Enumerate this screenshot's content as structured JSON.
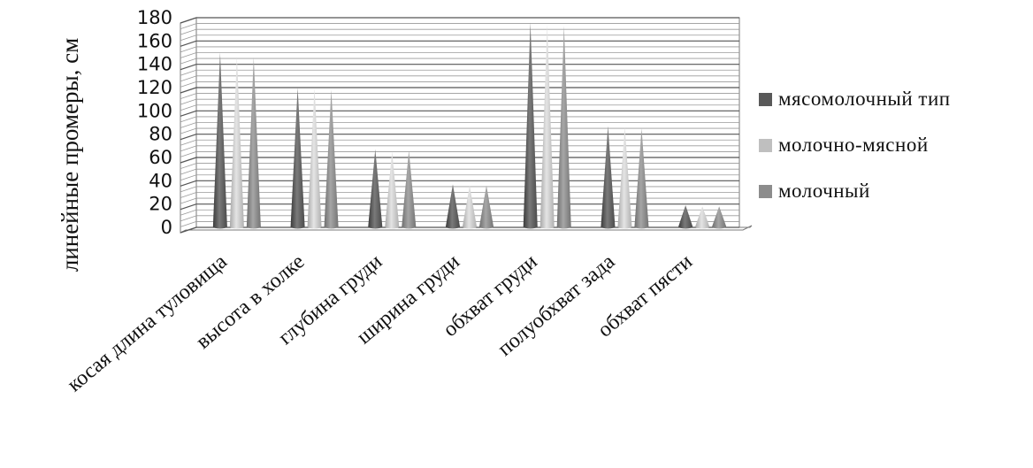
{
  "chart_data": {
    "type": "bar",
    "style": "3d-cone",
    "ylabel": "линейные промеры, см",
    "xlabel": "",
    "ylim": [
      0,
      180
    ],
    "yticks": [
      0,
      20,
      40,
      60,
      80,
      100,
      120,
      140,
      160,
      180
    ],
    "grid": "horizontal, minor lines every 5",
    "legend_position": "right",
    "categories": [
      "косая длина туловища",
      "высота в холке",
      "глубина груди",
      "ширина груди",
      "обхват груди",
      "полуобхват зада",
      "обхват пясти"
    ],
    "series": [
      {
        "name": "мясомолочный тип",
        "color": "#595959",
        "values": [
          150,
          120,
          67,
          37,
          176,
          87,
          19
        ]
      },
      {
        "name": "молочно-мясной",
        "color": "#bfbfbf",
        "values": [
          147,
          120,
          65,
          36,
          174,
          86,
          18
        ]
      },
      {
        "name": "молочный",
        "color": "#8c8c8c",
        "values": [
          146,
          118,
          66,
          36,
          173,
          85,
          18
        ]
      }
    ]
  }
}
